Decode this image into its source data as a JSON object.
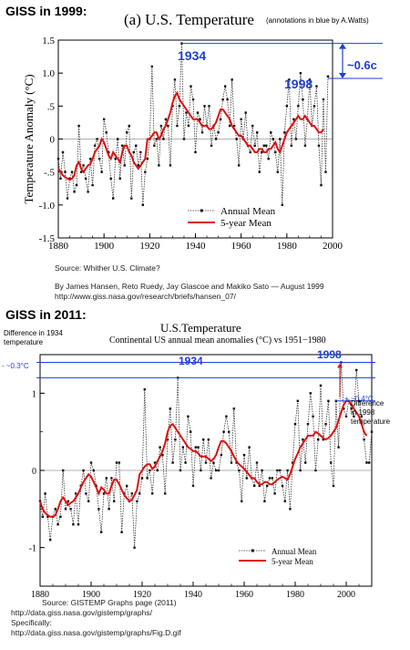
{
  "top": {
    "heading": "GISS in 1999:",
    "title": "(a)  U.S. Temperature",
    "credit": "(annotations in blue by A.Watts)",
    "source_line1": "Source: Whither U.S. Climate?",
    "source_line2": "By James Hansen, Reto Ruedy, Jay Glascoe and Makiko Sato — August 1999",
    "source_line3": "http://www.giss.nasa.gov/research/briefs/hansen_07/",
    "ann_1934": "1934",
    "ann_1998": "1998",
    "ann_diff": "~0.6c"
  },
  "bottom": {
    "heading": "GISS in 2011:",
    "title": "U.S.Temperature",
    "subtitle": "Continental US annual mean anomalies (°C) vs 1951−1980",
    "source_line1": "Source: GISTEMP Graphs page (2011)",
    "source_line2": "http://data.giss.nasa.gov/gistemp/graphs/",
    "source_line3": "Specifically:",
    "source_line4": "http://data.giss.nasa.gov/gistemp/graphs/Fig.D.gif",
    "ann_1934": "1934",
    "ann_1998": "1998",
    "ann_left_line1": "Difference in 1934",
    "ann_left_line2": "temperature",
    "ann_left_value": "- ~0.3°C",
    "ann_right_value": "+ ~0.4°C",
    "ann_right_line1": "Difference",
    "ann_right_line2": "in 1998",
    "ann_right_line3": "temperature"
  },
  "colors": {
    "annual": "#333333",
    "five_year": "#dd1111",
    "annotation": "#1f3fd6"
  },
  "chart_data": [
    {
      "type": "line",
      "title": "(a)  U.S. Temperature",
      "ylabel": "Temperature Anomaly (°C)",
      "xlabel": "",
      "xlim": [
        1880,
        2000
      ],
      "ylim": [
        -1.5,
        1.5
      ],
      "x_ticks": [
        "1880",
        "1900",
        "1920",
        "1940",
        "1960",
        "1980",
        "2000"
      ],
      "y_ticks": [
        "-1.5",
        "-1.0",
        "-.5",
        "0",
        ".5",
        "1.0",
        "1.5"
      ],
      "x_start": 1880,
      "legend": "bottom-right",
      "series": [
        {
          "name": "Annual Mean",
          "values": [
            -0.3,
            -0.6,
            -0.2,
            -0.5,
            -0.9,
            -0.6,
            -0.5,
            -0.8,
            -0.7,
            0.2,
            -0.5,
            -0.4,
            -0.6,
            -0.8,
            -0.3,
            -0.7,
            -0.1,
            0.0,
            -0.3,
            -0.5,
            0.3,
            0.1,
            -0.2,
            -0.6,
            -0.9,
            -0.3,
            0.0,
            -0.6,
            -0.1,
            -0.4,
            0.1,
            0.2,
            -0.9,
            -0.2,
            -0.1,
            -0.4,
            -0.2,
            -1.0,
            -0.5,
            -0.3,
            0.0,
            1.1,
            -0.1,
            0.0,
            -0.4,
            0.2,
            0.0,
            0.3,
            0.2,
            -0.4,
            0.5,
            0.9,
            0.2,
            0.5,
            1.45,
            0.0,
            0.4,
            0.2,
            0.8,
            0.6,
            -0.2,
            0.4,
            0.3,
            0.1,
            0.5,
            0.2,
            0.5,
            -0.1,
            0.2,
            0.0,
            0.1,
            0.3,
            0.6,
            0.8,
            0.6,
            0.2,
            0.9,
            0.2,
            0.0,
            -0.4,
            0.3,
            0.0,
            0.4,
            -0.1,
            -0.2,
            0.2,
            -0.1,
            0.1,
            -0.5,
            -0.2,
            -0.1,
            -0.1,
            -0.3,
            0.1,
            0.0,
            -0.2,
            -0.5,
            0.0,
            -1.0,
            0.1,
            0.5,
            0.9,
            -0.1,
            0.3,
            0.0,
            0.5,
            1.0,
            0.6,
            -0.1,
            0.3,
            0.9,
            0.2,
            0.5,
            0.8,
            -0.1,
            -0.7,
            0.6,
            -0.5,
            0.95
          ],
          "color": "#333333"
        },
        {
          "name": "5-year Mean",
          "values": [
            -0.45,
            -0.5,
            -0.55,
            -0.58,
            -0.6,
            -0.62,
            -0.6,
            -0.55,
            -0.4,
            -0.35,
            -0.45,
            -0.5,
            -0.45,
            -0.4,
            -0.38,
            -0.3,
            -0.2,
            -0.15,
            -0.1,
            0.0,
            -0.05,
            -0.15,
            -0.25,
            -0.3,
            -0.2,
            -0.25,
            -0.3,
            -0.35,
            -0.2,
            -0.1,
            -0.1,
            -0.2,
            -0.25,
            -0.35,
            -0.4,
            -0.45,
            -0.4,
            -0.35,
            -0.3,
            0.0,
            0.0,
            0.05,
            0.1,
            0.1,
            0.0,
            0.05,
            0.15,
            0.2,
            0.3,
            0.4,
            0.55,
            0.65,
            0.7,
            0.6,
            0.55,
            0.5,
            0.45,
            0.4,
            0.35,
            0.3,
            0.3,
            0.3,
            0.25,
            0.2,
            0.2,
            0.2,
            0.15,
            0.15,
            0.2,
            0.25,
            0.35,
            0.45,
            0.45,
            0.4,
            0.35,
            0.3,
            0.2,
            0.15,
            0.1,
            0.05,
            0.05,
            0.0,
            -0.05,
            -0.1,
            -0.1,
            -0.15,
            -0.2,
            -0.2,
            -0.15,
            -0.15,
            -0.2,
            -0.2,
            -0.15,
            -0.15,
            -0.1,
            -0.05,
            -0.15,
            -0.2,
            -0.1,
            0.0,
            0.1,
            0.15,
            0.2,
            0.25,
            0.3,
            0.35,
            0.3,
            0.3,
            0.35,
            0.3,
            0.25,
            0.2,
            0.2,
            0.15,
            0.1,
            0.1,
            0.15
          ],
          "color": "#dd1111"
        }
      ]
    },
    {
      "type": "line",
      "title": "U.S.Temperature",
      "subtitle": "Continental US annual mean anomalies (°C) vs 1951−1980",
      "xlabel": "",
      "ylabel": "",
      "xlim": [
        1880,
        2010
      ],
      "ylim": [
        -1.5,
        1.5
      ],
      "x_ticks": [
        "1880",
        "1900",
        "1920",
        "1940",
        "1960",
        "1980",
        "2000"
      ],
      "y_ticks": [
        "-1",
        "0",
        "1"
      ],
      "x_start": 1880,
      "legend": "bottom-right",
      "series": [
        {
          "name": "Annual Mean",
          "values": [
            -0.4,
            -0.6,
            -0.3,
            -0.6,
            -0.9,
            -0.6,
            -0.5,
            -0.7,
            -0.6,
            0.0,
            -0.5,
            -0.4,
            -0.5,
            -0.7,
            -0.3,
            -0.7,
            -0.2,
            0.0,
            -0.3,
            -0.4,
            0.1,
            0.0,
            -0.2,
            -0.5,
            -0.8,
            -0.3,
            -0.1,
            -0.5,
            -0.1,
            -0.4,
            0.1,
            0.1,
            -0.8,
            -0.3,
            -0.2,
            -0.4,
            -0.3,
            -1.0,
            -0.4,
            -0.3,
            -0.1,
            1.05,
            -0.1,
            0.0,
            -0.3,
            0.1,
            0.0,
            0.3,
            0.2,
            -0.3,
            0.4,
            0.8,
            0.1,
            0.4,
            1.2,
            0.0,
            0.3,
            0.1,
            0.7,
            0.5,
            -0.2,
            0.3,
            0.3,
            0.0,
            0.4,
            0.1,
            0.4,
            -0.1,
            0.1,
            0.0,
            0.0,
            0.2,
            0.5,
            0.7,
            0.5,
            0.1,
            0.8,
            0.1,
            0.0,
            -0.4,
            0.2,
            -0.1,
            0.3,
            -0.1,
            -0.2,
            0.1,
            -0.2,
            0.0,
            -0.4,
            -0.2,
            -0.1,
            -0.1,
            -0.3,
            0.0,
            0.0,
            -0.2,
            -0.4,
            0.0,
            -0.5,
            0.1,
            0.6,
            0.9,
            0.0,
            0.4,
            0.1,
            0.6,
            1.0,
            0.7,
            0.0,
            0.4,
            1.1,
            0.4,
            0.6,
            0.9,
            0.1,
            -0.2,
            0.9,
            0.3,
            1.4,
            0.8,
            0.7,
            0.9,
            0.8,
            0.7,
            1.3,
            0.9,
            0.7,
            0.4,
            0.1,
            0.1,
            0.5
          ],
          "color": "#333333"
        },
        {
          "name": "5-year Mean",
          "values": [
            -0.4,
            -0.5,
            -0.55,
            -0.58,
            -0.6,
            -0.6,
            -0.58,
            -0.5,
            -0.4,
            -0.35,
            -0.4,
            -0.45,
            -0.42,
            -0.4,
            -0.35,
            -0.3,
            -0.22,
            -0.15,
            -0.1,
            -0.05,
            -0.08,
            -0.15,
            -0.22,
            -0.3,
            -0.22,
            -0.25,
            -0.3,
            -0.3,
            -0.2,
            -0.12,
            -0.12,
            -0.18,
            -0.25,
            -0.32,
            -0.36,
            -0.4,
            -0.38,
            -0.32,
            -0.25,
            -0.05,
            0.0,
            0.05,
            0.08,
            0.08,
            0.02,
            0.05,
            0.12,
            0.18,
            0.25,
            0.35,
            0.5,
            0.58,
            0.6,
            0.55,
            0.5,
            0.45,
            0.4,
            0.35,
            0.3,
            0.28,
            0.25,
            0.25,
            0.22,
            0.18,
            0.18,
            0.18,
            0.15,
            0.12,
            0.15,
            0.2,
            0.3,
            0.38,
            0.38,
            0.35,
            0.3,
            0.25,
            0.18,
            0.12,
            0.08,
            0.05,
            0.02,
            -0.02,
            -0.06,
            -0.1,
            -0.1,
            -0.15,
            -0.18,
            -0.18,
            -0.15,
            -0.15,
            -0.18,
            -0.18,
            -0.15,
            -0.12,
            -0.1,
            -0.08,
            -0.1,
            -0.12,
            -0.05,
            0.05,
            0.15,
            0.22,
            0.3,
            0.35,
            0.4,
            0.45,
            0.45,
            0.45,
            0.5,
            0.48,
            0.45,
            0.42,
            0.4,
            0.42,
            0.45,
            0.5,
            0.55,
            0.65,
            0.75,
            0.85,
            0.9,
            0.9,
            0.85,
            0.8,
            0.75,
            0.7,
            0.6,
            0.5,
            0.45
          ],
          "color": "#dd1111"
        }
      ]
    }
  ]
}
